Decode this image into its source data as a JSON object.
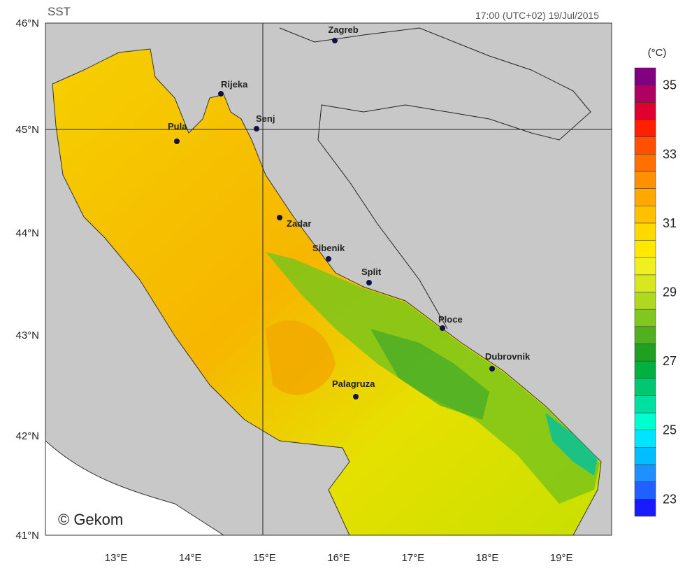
{
  "header": {
    "title": "SST",
    "timestamp": "17:00 (UTC+02)  19/Jul/2015"
  },
  "axes": {
    "latitudes": [
      "46°N",
      "45°N",
      "44°N",
      "43°N",
      "42°N",
      "41°N"
    ],
    "longitudes": [
      "13°E",
      "14°E",
      "15°E",
      "16°E",
      "17°E",
      "18°E",
      "19°E"
    ]
  },
  "cities": [
    "Zagreb",
    "Rijeka",
    "Senj",
    "Pula",
    "Zadar",
    "Sibenik",
    "Split",
    "Ploce",
    "Dubrovnik",
    "Palagruza"
  ],
  "copyright": "© Gekom",
  "colorbar": {
    "unit": "(°C)",
    "range": [
      22.5,
      35.5
    ],
    "ticks": [
      23,
      25,
      27,
      29,
      31,
      33,
      35
    ],
    "colors": [
      "#1a1aff",
      "#2060ff",
      "#1e90ff",
      "#00bfff",
      "#00e5ff",
      "#00ffd0",
      "#00e0a0",
      "#00c870",
      "#00b040",
      "#20a020",
      "#50b020",
      "#80c820",
      "#b0d820",
      "#d8e820",
      "#f0f020",
      "#ffe800",
      "#ffd800",
      "#ffc000",
      "#ffa800",
      "#ff9000",
      "#ff7000",
      "#ff5000",
      "#ff2000",
      "#e00030",
      "#b00060",
      "#800080"
    ]
  }
}
